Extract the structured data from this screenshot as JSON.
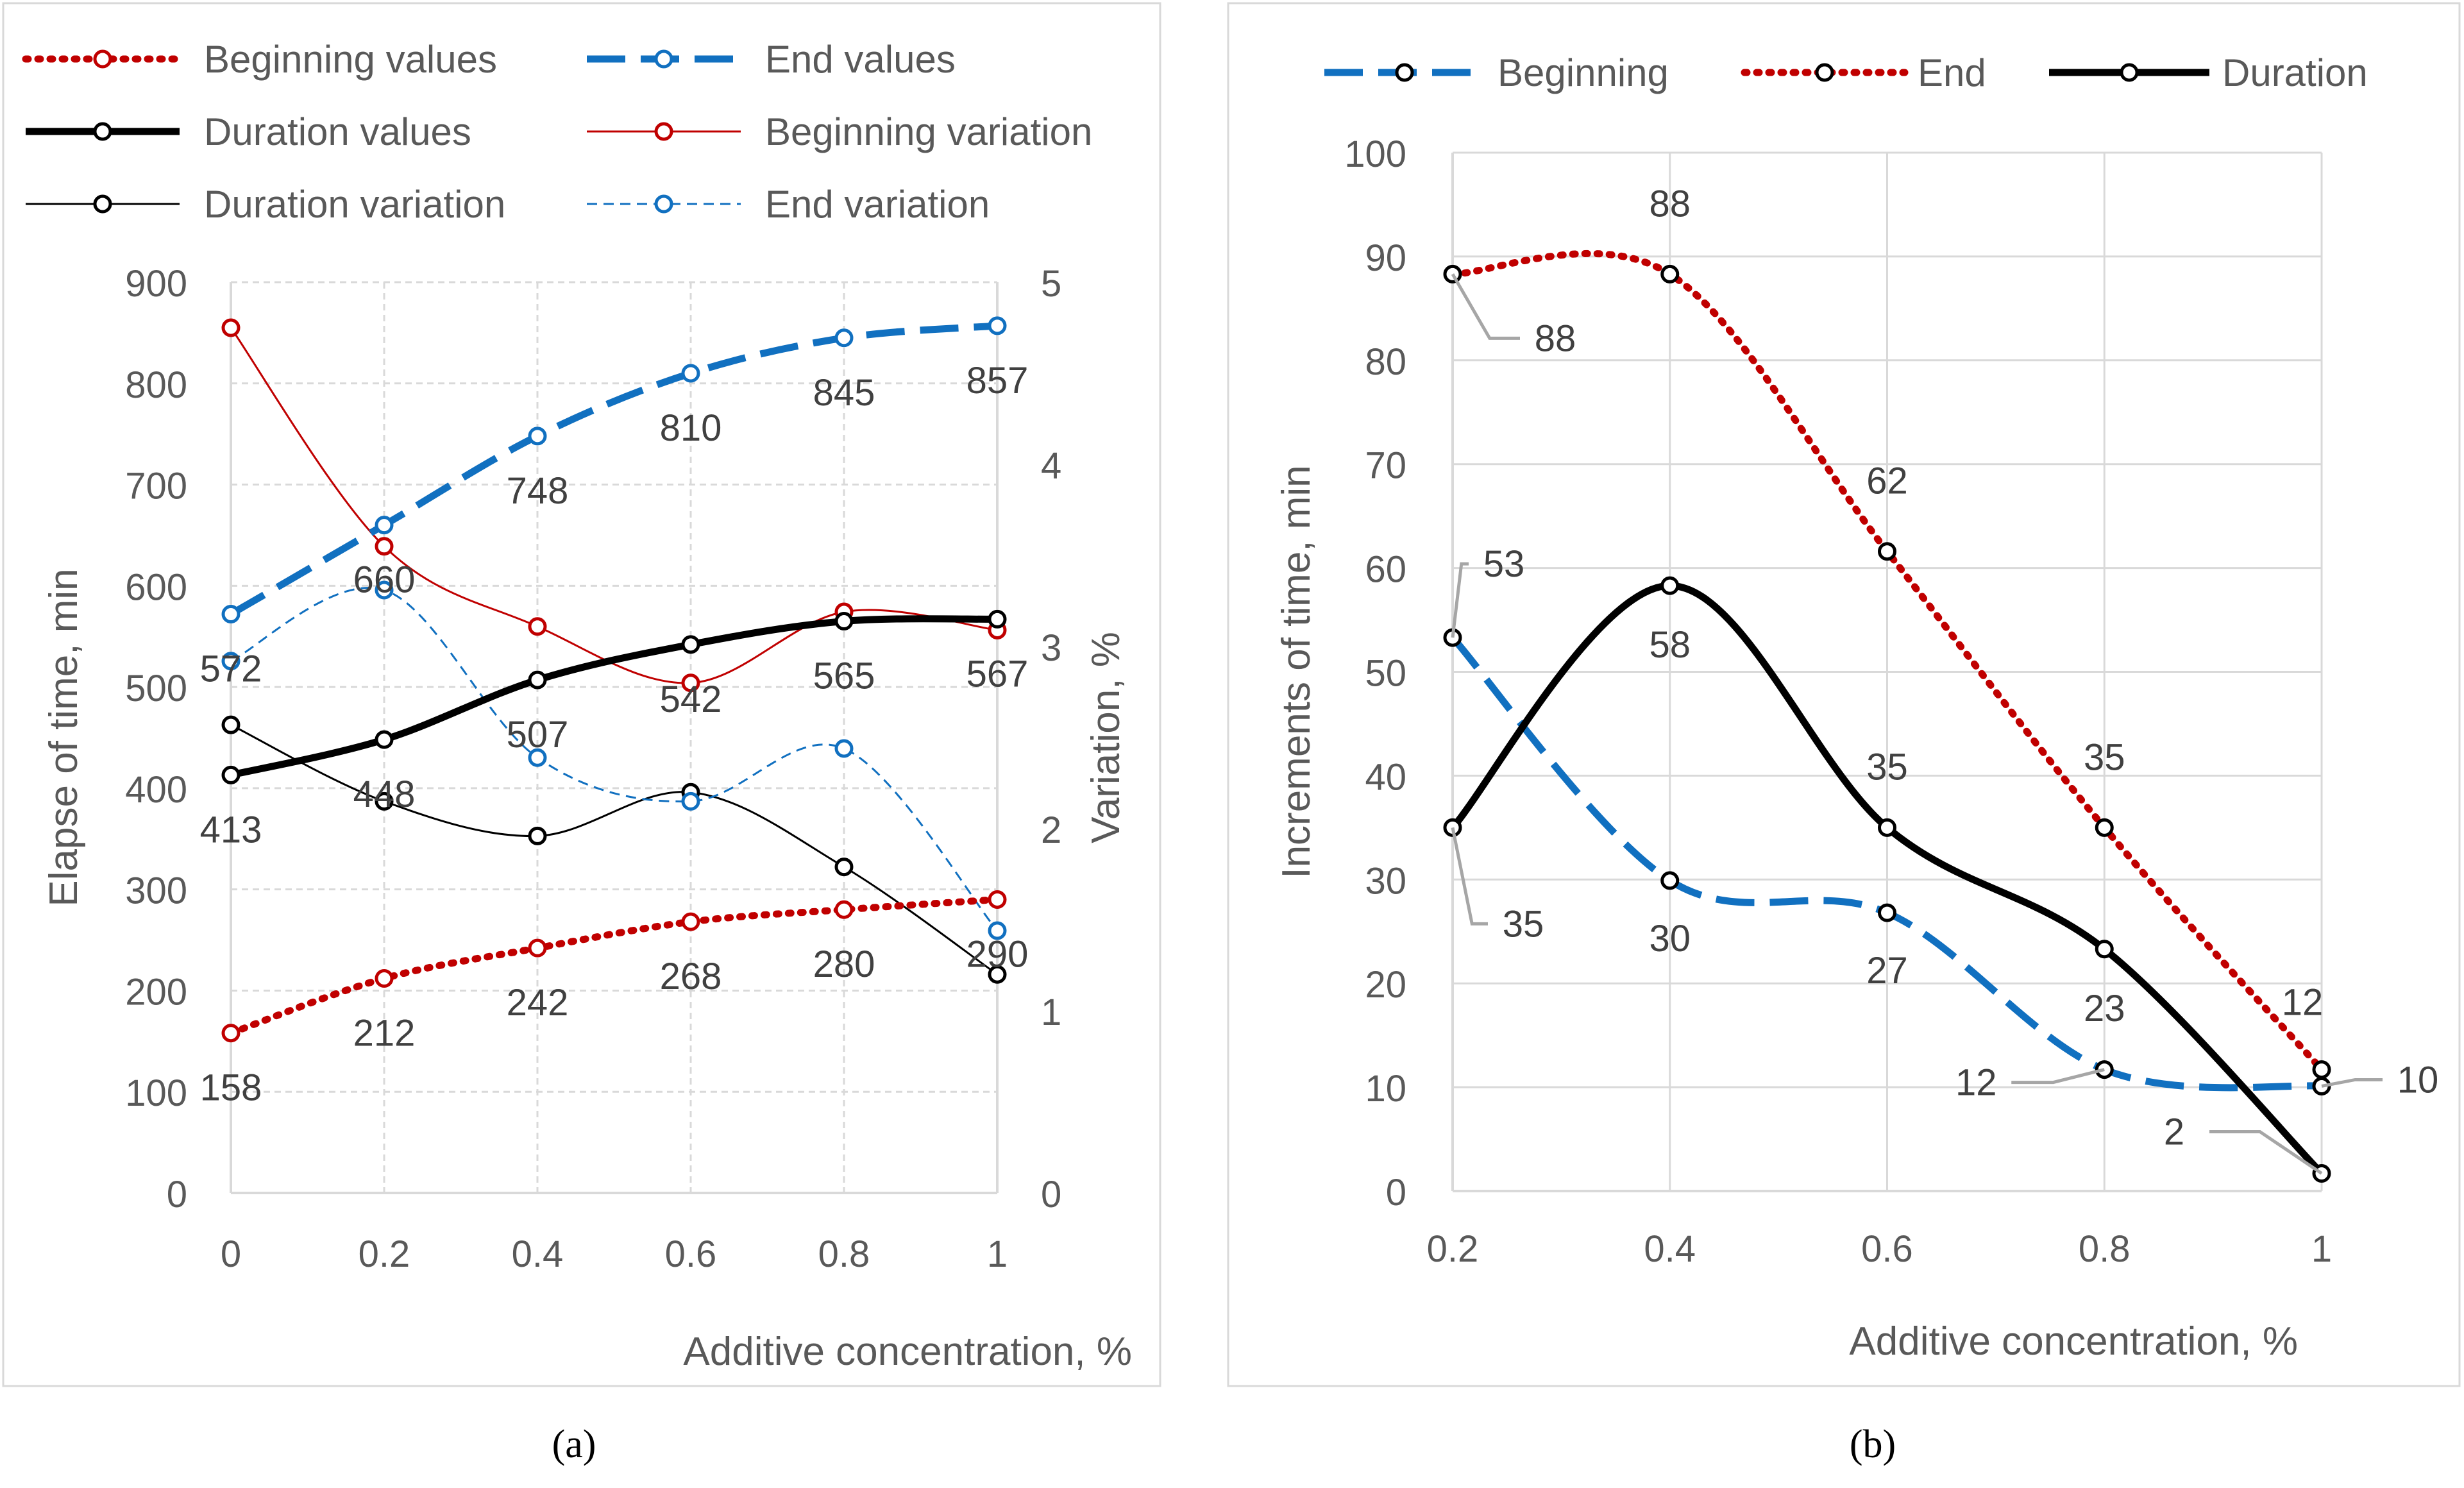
{
  "chart_data": [
    {
      "panel": "a",
      "caption": "(a)",
      "type": "line",
      "x": [
        0,
        0.2,
        0.4,
        0.6,
        0.8,
        1
      ],
      "xlabel": "Additive concentration, %",
      "xticks": [
        "0",
        "0.2",
        "0.4",
        "0.6",
        "0.8",
        "1"
      ],
      "xlim": [
        0,
        1
      ],
      "ylabel": "Elapse of time, min",
      "ylim": [
        0,
        900
      ],
      "yticks": [
        "0",
        "100",
        "200",
        "300",
        "400",
        "500",
        "600",
        "700",
        "800",
        "900"
      ],
      "y2label": "Variation, %",
      "y2lim": [
        0,
        5
      ],
      "y2ticks": [
        "0",
        "1",
        "2",
        "3",
        "4",
        "5"
      ],
      "grid": true,
      "legend_position": "top",
      "series": [
        {
          "name": "Beginning values",
          "axis": "left",
          "color": "#c00000",
          "style": "dotted",
          "weight": "thick",
          "smooth": true,
          "values": [
            158,
            212,
            242,
            268,
            280,
            290
          ],
          "labels": [
            "158",
            "212",
            "242",
            "268",
            "280",
            "290"
          ]
        },
        {
          "name": "End values",
          "axis": "left",
          "color": "#1170c0",
          "style": "dashed",
          "weight": "thick",
          "smooth": true,
          "values": [
            572,
            660,
            748,
            810,
            845,
            857
          ],
          "labels": [
            "572",
            "660",
            "748",
            "810",
            "845",
            "857"
          ]
        },
        {
          "name": "Duration values",
          "axis": "left",
          "color": "#000000",
          "style": "solid",
          "weight": "thick",
          "smooth": true,
          "values": [
            413,
            448,
            507,
            542,
            565,
            567
          ],
          "labels": [
            "413",
            "448",
            "507",
            "542",
            "565",
            "567"
          ]
        },
        {
          "name": "Beginning variation",
          "axis": "right",
          "color": "#c00000",
          "style": "solid",
          "weight": "thin",
          "smooth": true,
          "values": [
            4.75,
            3.55,
            3.11,
            2.8,
            3.19,
            3.09
          ],
          "labels": []
        },
        {
          "name": "Duration variation",
          "axis": "right",
          "color": "#000000",
          "style": "solid",
          "weight": "thin",
          "smooth": true,
          "values": [
            2.57,
            2.15,
            1.96,
            2.2,
            1.79,
            1.2
          ],
          "labels": []
        },
        {
          "name": "End variation",
          "axis": "right",
          "color": "#1170c0",
          "style": "dashed",
          "weight": "thin",
          "smooth": true,
          "values": [
            2.92,
            3.31,
            2.39,
            2.15,
            2.44,
            1.44
          ],
          "labels": []
        }
      ]
    },
    {
      "panel": "b",
      "caption": "(b)",
      "type": "line",
      "x": [
        0.2,
        0.4,
        0.6,
        0.8,
        1
      ],
      "xlabel": "Additive concentration, %",
      "xticks": [
        "0.2",
        "0.4",
        "0.6",
        "0.8",
        "1"
      ],
      "xlim": [
        0.2,
        1
      ],
      "ylabel": "Increments of time, min",
      "ylim": [
        0,
        100
      ],
      "yticks": [
        "0",
        "10",
        "20",
        "30",
        "40",
        "50",
        "60",
        "70",
        "80",
        "90",
        "100"
      ],
      "grid": true,
      "legend_position": "top",
      "series": [
        {
          "name": "Beginning",
          "color": "#1170c0",
          "style": "dashed",
          "weight": "thick",
          "smooth": true,
          "values": [
            53.3,
            29.9,
            26.8,
            11.7,
            10.1
          ],
          "labels": [
            "53",
            "30",
            "27",
            "12",
            "10"
          ]
        },
        {
          "name": "End",
          "color": "#c00000",
          "style": "dotted",
          "weight": "thick",
          "smooth": true,
          "values": [
            88.3,
            88.3,
            61.6,
            35.0,
            11.7
          ],
          "labels": [
            "88",
            "88",
            "62",
            "35",
            "12"
          ]
        },
        {
          "name": "Duration",
          "color": "#000000",
          "style": "solid",
          "weight": "thick",
          "smooth": true,
          "values": [
            35.0,
            58.3,
            35.0,
            23.3,
            1.7
          ],
          "labels": [
            "35",
            "58",
            "35",
            "23",
            "2"
          ]
        }
      ]
    }
  ]
}
